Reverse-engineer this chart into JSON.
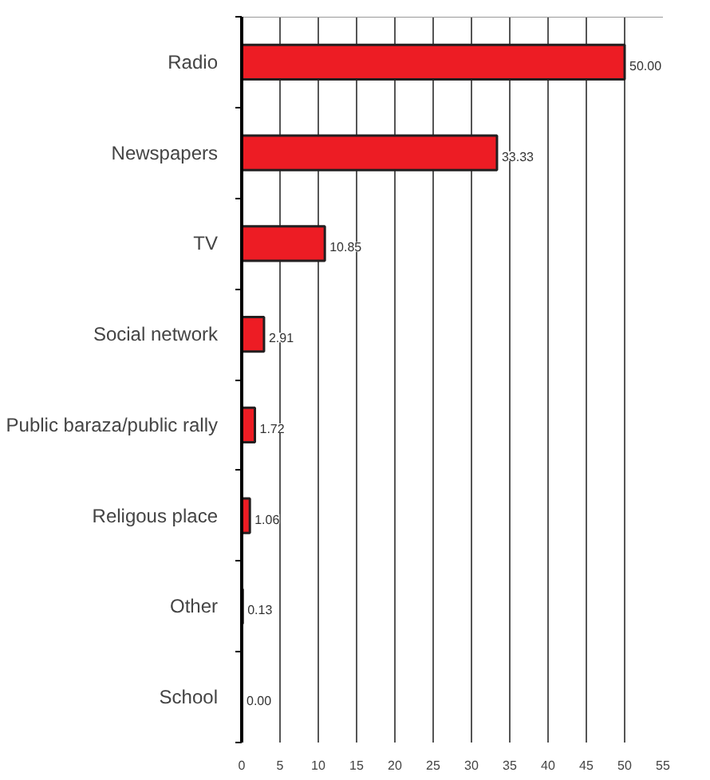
{
  "chart_data": {
    "type": "bar",
    "orientation": "horizontal",
    "categories": [
      "Radio",
      "Newspapers",
      "TV",
      "Social network",
      "Public baraza/public rally",
      "Religous place",
      "Other",
      "School"
    ],
    "values": [
      50.0,
      33.33,
      10.85,
      2.91,
      1.72,
      1.06,
      0.13,
      0.0
    ],
    "value_labels": [
      "50.00",
      "33.33",
      "10.85",
      "2.91",
      "1.72",
      "1.06",
      "0.13",
      "0.00"
    ],
    "color": "#ed1c24",
    "xlim": [
      0,
      55
    ],
    "xticks": [
      0,
      5,
      10,
      15,
      20,
      25,
      30,
      35,
      40,
      45,
      50,
      55
    ],
    "grid": "x"
  }
}
